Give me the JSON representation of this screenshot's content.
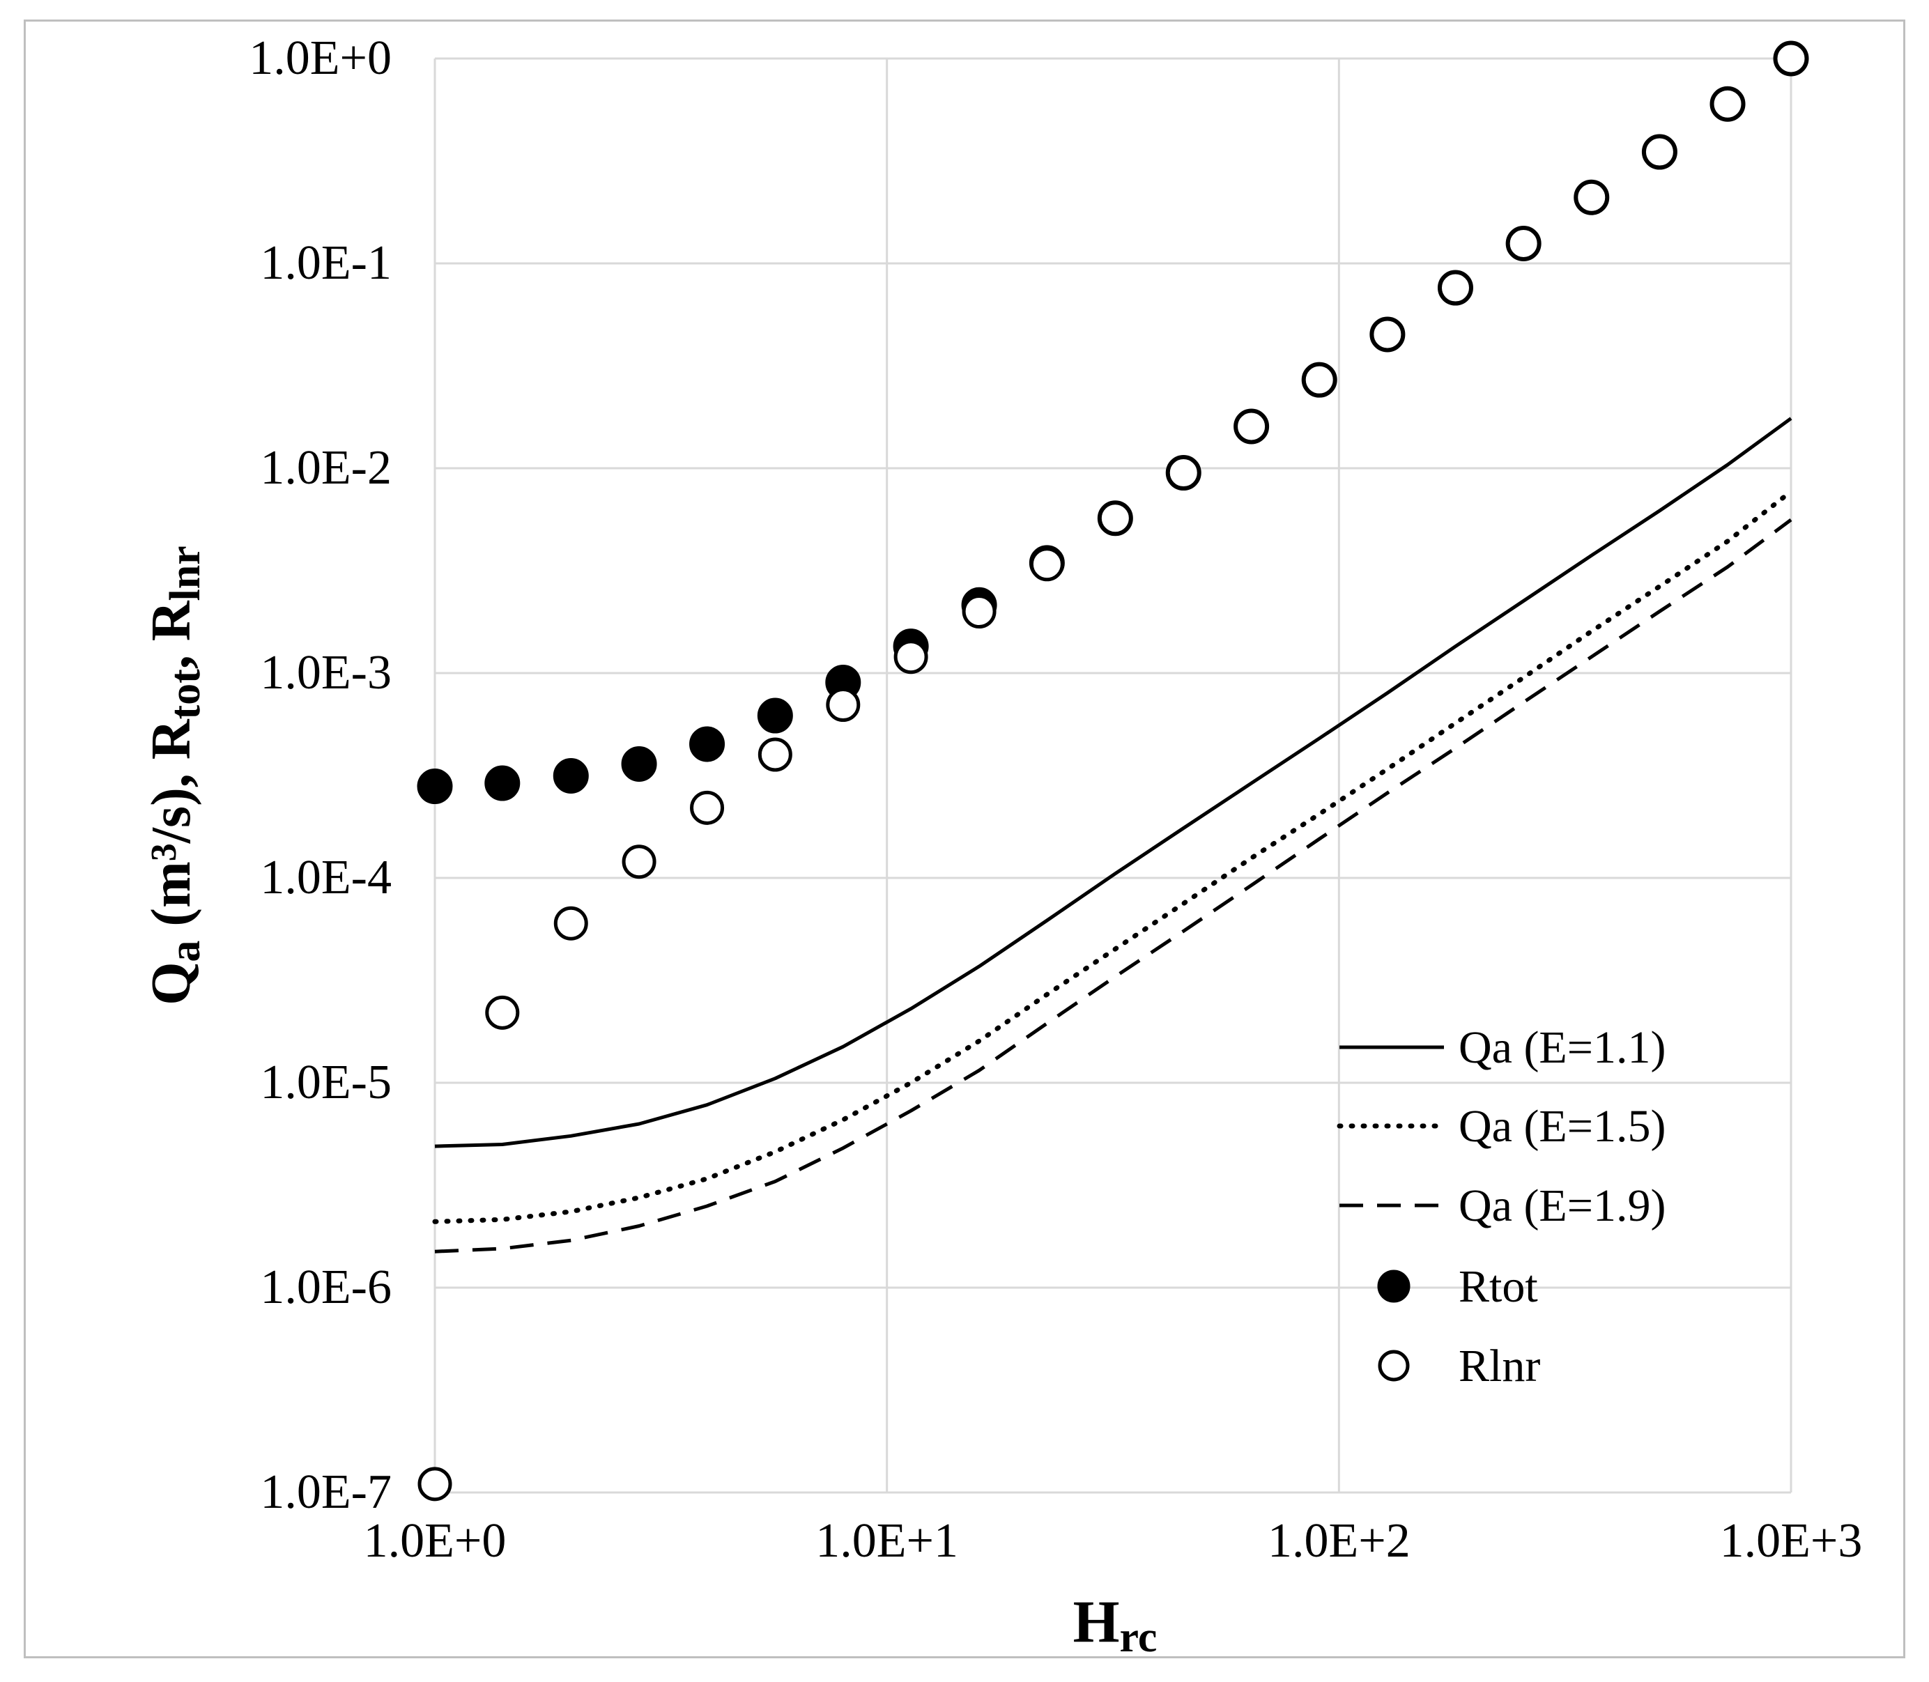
{
  "chart_data": {
    "type": "line",
    "x_scale": "log",
    "y_scale": "log",
    "xlim": [
      1,
      1000
    ],
    "ylim": [
      1e-07,
      1
    ],
    "grid": true,
    "xlabel": {
      "main": "H",
      "sub": "rc"
    },
    "ylabel": {
      "parts": [
        {
          "t": "Q",
          "style": "normal"
        },
        {
          "t": "a",
          "style": "sub"
        },
        {
          "t": " (m",
          "style": "normal"
        },
        {
          "t": "3",
          "style": "sup"
        },
        {
          "t": "/s), R",
          "style": "normal"
        },
        {
          "t": "tot",
          "style": "sub"
        },
        {
          "t": ", R",
          "style": "normal"
        },
        {
          "t": "lnr",
          "style": "sub"
        }
      ]
    },
    "x_ticks": [
      {
        "value": 1,
        "label": "1.0E+0"
      },
      {
        "value": 10,
        "label": "1.0E+1"
      },
      {
        "value": 100,
        "label": "1.0E+2"
      },
      {
        "value": 1000,
        "label": "1.0E+3"
      }
    ],
    "y_ticks": [
      {
        "value": 1,
        "label": "1.0E+0"
      },
      {
        "value": 0.1,
        "label": "1.0E-1"
      },
      {
        "value": 0.01,
        "label": "1.0E-2"
      },
      {
        "value": 0.001,
        "label": "1.0E-3"
      },
      {
        "value": 0.0001,
        "label": "1.0E-4"
      },
      {
        "value": 1e-05,
        "label": "1.0E-5"
      },
      {
        "value": 1e-06,
        "label": "1.0E-6"
      },
      {
        "value": 1e-07,
        "label": "1.0E-7"
      }
    ],
    "legend_position": "bottom-right",
    "series": [
      {
        "name": "Qa (E=1.1)",
        "kind": "line",
        "dash": "solid",
        "points": [
          [
            1,
            4.9e-06
          ],
          [
            1.41,
            5e-06
          ],
          [
            2,
            5.5e-06
          ],
          [
            2.83,
            6.3e-06
          ],
          [
            4,
            7.8e-06
          ],
          [
            5.66,
            1.05e-05
          ],
          [
            8,
            1.5e-05
          ],
          [
            11.3,
            2.3e-05
          ],
          [
            16,
            3.7e-05
          ],
          [
            22.6,
            6.2e-05
          ],
          [
            32,
            0.000105
          ],
          [
            45.3,
            0.000175
          ],
          [
            64,
            0.00029
          ],
          [
            90.5,
            0.00048
          ],
          [
            128,
            0.0008
          ],
          [
            181,
            0.00135
          ],
          [
            256,
            0.00225
          ],
          [
            362,
            0.00375
          ],
          [
            512,
            0.0062
          ],
          [
            724,
            0.0104
          ],
          [
            1000,
            0.0175
          ]
        ]
      },
      {
        "name": "Qa (E=1.5)",
        "kind": "line",
        "dash": "dotted",
        "points": [
          [
            1,
            2.1e-06
          ],
          [
            1.41,
            2.15e-06
          ],
          [
            2,
            2.35e-06
          ],
          [
            2.83,
            2.75e-06
          ],
          [
            4,
            3.4e-06
          ],
          [
            5.66,
            4.6e-06
          ],
          [
            8,
            6.6e-06
          ],
          [
            11.3,
            1e-05
          ],
          [
            16,
            1.6e-05
          ],
          [
            22.6,
            2.7e-05
          ],
          [
            32,
            4.5e-05
          ],
          [
            45.3,
            7.5e-05
          ],
          [
            64,
            0.000125
          ],
          [
            90.5,
            0.000205
          ],
          [
            128,
            0.00034
          ],
          [
            181,
            0.00057
          ],
          [
            256,
            0.00095
          ],
          [
            362,
            0.0016
          ],
          [
            512,
            0.00265
          ],
          [
            724,
            0.0044
          ],
          [
            1000,
            0.0077
          ]
        ]
      },
      {
        "name": "Qa (E=1.9)",
        "kind": "line",
        "dash": "dashed",
        "points": [
          [
            1,
            1.5e-06
          ],
          [
            1.41,
            1.55e-06
          ],
          [
            2,
            1.7e-06
          ],
          [
            2.83,
            2e-06
          ],
          [
            4,
            2.5e-06
          ],
          [
            5.66,
            3.3e-06
          ],
          [
            8,
            4.8e-06
          ],
          [
            11.3,
            7.3e-06
          ],
          [
            16,
            1.15e-05
          ],
          [
            22.6,
            1.95e-05
          ],
          [
            32,
            3.3e-05
          ],
          [
            45.3,
            5.5e-05
          ],
          [
            64,
            9.2e-05
          ],
          [
            90.5,
            0.000155
          ],
          [
            128,
            0.00026
          ],
          [
            181,
            0.00043
          ],
          [
            256,
            0.00072
          ],
          [
            362,
            0.0012
          ],
          [
            512,
            0.002
          ],
          [
            724,
            0.0033
          ],
          [
            1000,
            0.0056
          ]
        ]
      },
      {
        "name": "Rtot",
        "kind": "scatter",
        "marker": "filled-circle",
        "points": [
          [
            1,
            0.00028
          ],
          [
            1.41,
            0.00029
          ],
          [
            2,
            0.000315
          ],
          [
            2.83,
            0.00036
          ],
          [
            4,
            0.00045
          ],
          [
            5.66,
            0.00062
          ],
          [
            8,
            0.0009
          ],
          [
            11.3,
            0.00135
          ],
          [
            16,
            0.00215
          ],
          [
            22.6,
            0.00345
          ],
          [
            32,
            0.0057
          ],
          [
            45.3,
            0.0095
          ],
          [
            64,
            0.016
          ],
          [
            90.5,
            0.027
          ],
          [
            128,
            0.045
          ],
          [
            181,
            0.076
          ],
          [
            256,
            0.125
          ],
          [
            362,
            0.21
          ],
          [
            512,
            0.35
          ],
          [
            724,
            0.6
          ],
          [
            1000,
            1.0
          ]
        ]
      },
      {
        "name": "Rlnr",
        "kind": "scatter",
        "marker": "open-circle",
        "points": [
          [
            1,
            1.1e-07
          ],
          [
            1.41,
            2.2e-05
          ],
          [
            2,
            6e-05
          ],
          [
            2.83,
            0.00012
          ],
          [
            4,
            0.00022
          ],
          [
            5.66,
            0.0004
          ],
          [
            8,
            0.0007
          ],
          [
            11.3,
            0.0012
          ],
          [
            16,
            0.002
          ],
          [
            22.6,
            0.0034
          ],
          [
            32,
            0.0057
          ],
          [
            45.3,
            0.0095
          ],
          [
            64,
            0.016
          ],
          [
            90.5,
            0.027
          ],
          [
            128,
            0.045
          ],
          [
            181,
            0.076
          ],
          [
            256,
            0.125
          ],
          [
            362,
            0.21
          ],
          [
            512,
            0.35
          ],
          [
            724,
            0.6
          ],
          [
            1000,
            1.0
          ]
        ]
      }
    ]
  }
}
